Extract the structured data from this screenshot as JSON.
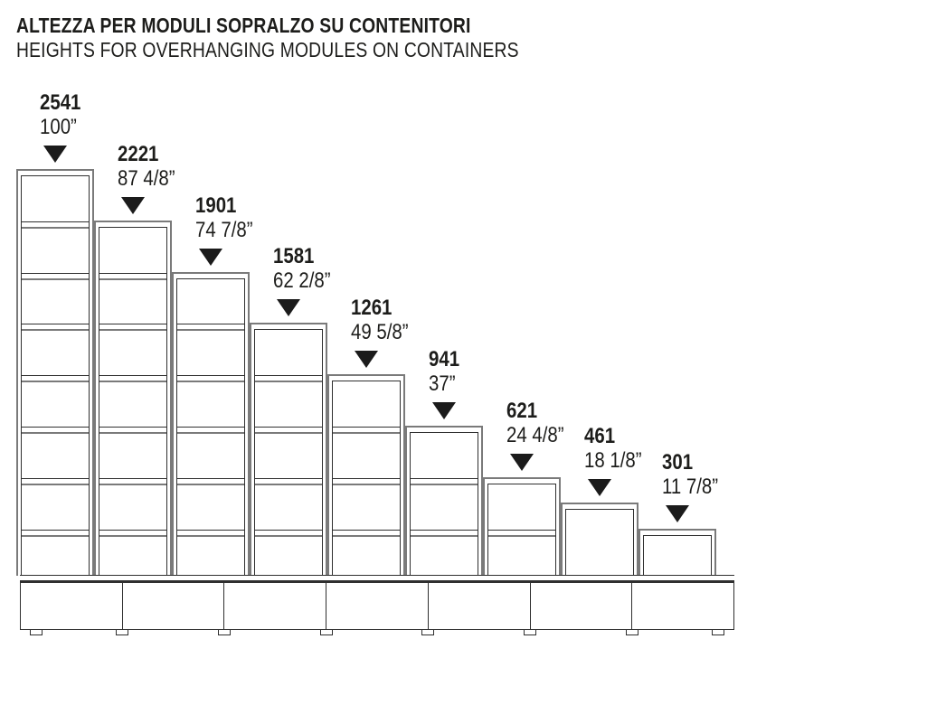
{
  "title": {
    "italian": "ALTEZZA PER MODULI SOPRALZO SU CONTENITORI",
    "english": "HEIGHTS FOR OVERHANGING MODULES ON CONTAINERS"
  },
  "diagram": {
    "type": "elevation-dimension-diagram",
    "modules": "overhanging shelving modules of decreasing height, left to right, standing on a row of base containers",
    "marker_icon": "down-triangle-arrow"
  },
  "modules": [
    {
      "height_mm": "2541",
      "height_inches": "100”"
    },
    {
      "height_mm": "2221",
      "height_inches": "87 4/8”"
    },
    {
      "height_mm": "1901",
      "height_inches": "74 7/8”"
    },
    {
      "height_mm": "1581",
      "height_inches": "62 2/8”"
    },
    {
      "height_mm": "1261",
      "height_inches": "49 5/8”"
    },
    {
      "height_mm": "941",
      "height_inches": "37”"
    },
    {
      "height_mm": "621",
      "height_inches": "24 4/8”"
    },
    {
      "height_mm": "461",
      "height_inches": "18 1/8”"
    },
    {
      "height_mm": "301",
      "height_inches": "11 7/8”"
    }
  ],
  "base": {
    "container_count": 7,
    "feet_count": 8
  },
  "colors": {
    "background": "#ffffff",
    "line_dark": "#2f2f2f",
    "line_gray": "#7a7a7a",
    "text": "#1d1d1b",
    "marker": "#1b1b1b"
  }
}
